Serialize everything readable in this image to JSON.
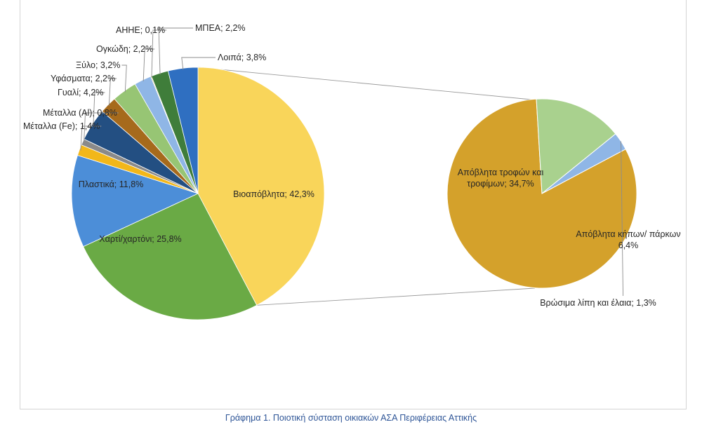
{
  "caption": "Γράφημα 1. Ποιοτική σύσταση οικιακών ΑΣΑ Περιφέρειας Αττικής",
  "chart_data": {
    "type": "pie",
    "subtype": "pie-of-pie",
    "main_pie": {
      "slices": [
        {
          "label": "Βιοαπόβλητα; 42,3%",
          "value": 42.3,
          "color": "#f9d55a"
        },
        {
          "label": "Χαρτί/χαρτόνι; 25,8%",
          "value": 25.8,
          "color": "#6aaa45"
        },
        {
          "label": "Πλαστικά; 11,8%",
          "value": 11.8,
          "color": "#4c8ed8"
        },
        {
          "label": "Μέταλλα (Fe); 1,4%",
          "value": 1.4,
          "color": "#f2b71a"
        },
        {
          "label": "Μέταλλα (Al); 0,8%",
          "value": 0.8,
          "color": "#8a8a8a"
        },
        {
          "label": "Γυαλί; 4,2%",
          "value": 4.2,
          "color": "#234f82"
        },
        {
          "label": "Υφάσματα; 2,2%",
          "value": 2.2,
          "color": "#a66a1c"
        },
        {
          "label": "Ξύλο; 3,2%",
          "value": 3.2,
          "color": "#97c574"
        },
        {
          "label": "Ογκώδη; 2,2%",
          "value": 2.2,
          "color": "#8fb6e6"
        },
        {
          "label": "ΑΗΗΕ; 0,1%",
          "value": 0.1,
          "color": "#c9a227"
        },
        {
          "label": "ΜΠΕΑ; 2,2%",
          "value": 2.2,
          "color": "#3f7d3a"
        },
        {
          "label": "Λοιπά; 3,8%",
          "value": 3.8,
          "color": "#2f6fc1"
        }
      ]
    },
    "secondary_pie": {
      "slices": [
        {
          "label_lines": [
            "Απόβλητα τροφών και",
            "τροφίμων; 34,7%"
          ],
          "value": 34.7,
          "color": "#d4a12b"
        },
        {
          "label_lines": [
            "Απόβλητα κήπων/ πάρκων",
            "6,4%"
          ],
          "value": 6.4,
          "color": "#a9d18e"
        },
        {
          "label_lines": [
            "Βρώσιμα λίπη και έλαια; 1,3%"
          ],
          "value": 1.3,
          "color": "#8fb6e6"
        }
      ]
    }
  }
}
